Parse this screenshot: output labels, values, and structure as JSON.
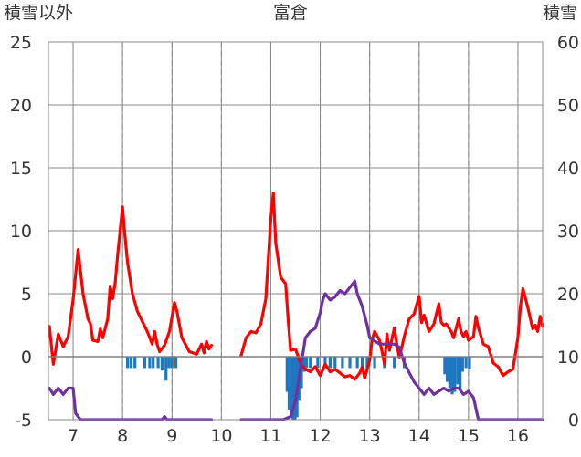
{
  "chart_data": {
    "type": "line",
    "title": "富倉",
    "left_axis_label": "積雪以外",
    "right_axis_label": "積雪",
    "x_ticks": [
      "7",
      "8",
      "9",
      "10",
      "11",
      "12",
      "13",
      "14",
      "15",
      "16"
    ],
    "x_range": [
      6.5,
      16.5
    ],
    "y_left": {
      "min": -5,
      "max": 25,
      "ticks": [
        "-5",
        "0",
        "5",
        "10",
        "15",
        "20",
        "25"
      ]
    },
    "y_right": {
      "min": 0,
      "max": 60,
      "ticks": [
        "0",
        "10",
        "20",
        "30",
        "40",
        "50",
        "60"
      ]
    },
    "grid": {
      "vertical": "dashed",
      "horizontal": "solid"
    },
    "colors": {
      "temperature": "#ff0000",
      "snow_depth": "#7030a0",
      "precipitation": "#1f77c0",
      "grid": "#888888"
    },
    "series": [
      {
        "axis": "left",
        "color": "#ff0000",
        "segments": [
          [
            [
              6.52,
              2.4
            ],
            [
              6.6,
              -0.6
            ],
            [
              6.7,
              1.8
            ],
            [
              6.8,
              0.8
            ],
            [
              6.9,
              1.6
            ],
            [
              7.0,
              4.5
            ],
            [
              7.1,
              8.5
            ],
            [
              7.2,
              5.0
            ],
            [
              7.3,
              3.0
            ],
            [
              7.35,
              2.6
            ],
            [
              7.4,
              1.3
            ],
            [
              7.5,
              1.2
            ],
            [
              7.55,
              2.2
            ],
            [
              7.6,
              1.5
            ],
            [
              7.7,
              3.0
            ],
            [
              7.75,
              5.6
            ],
            [
              7.8,
              4.6
            ],
            [
              7.85,
              5.8
            ],
            [
              7.9,
              8.0
            ],
            [
              8.0,
              11.9
            ],
            [
              8.05,
              9.5
            ],
            [
              8.1,
              7.5
            ],
            [
              8.2,
              5.0
            ],
            [
              8.3,
              3.6
            ],
            [
              8.4,
              2.8
            ],
            [
              8.5,
              2.0
            ],
            [
              8.6,
              1.0
            ],
            [
              8.65,
              2.0
            ],
            [
              8.7,
              1.0
            ],
            [
              8.75,
              0.4
            ],
            [
              8.85,
              0.9
            ],
            [
              8.95,
              2.0
            ],
            [
              9.05,
              4.3
            ],
            [
              9.1,
              3.6
            ],
            [
              9.2,
              1.5
            ],
            [
              9.35,
              0.4
            ],
            [
              9.5,
              0.2
            ],
            [
              9.6,
              1.0
            ],
            [
              9.65,
              0.3
            ],
            [
              9.7,
              1.2
            ],
            [
              9.75,
              0.6
            ],
            [
              9.8,
              0.9
            ]
          ],
          [
            [
              10.4,
              0.1
            ],
            [
              10.5,
              1.5
            ],
            [
              10.6,
              2.0
            ],
            [
              10.7,
              1.9
            ],
            [
              10.8,
              2.6
            ],
            [
              10.9,
              4.6
            ],
            [
              11.0,
              11.0
            ],
            [
              11.05,
              13.0
            ],
            [
              11.1,
              9.0
            ],
            [
              11.2,
              6.3
            ],
            [
              11.3,
              5.8
            ],
            [
              11.35,
              3.0
            ],
            [
              11.4,
              0.5
            ],
            [
              11.5,
              0.6
            ],
            [
              11.6,
              -0.5
            ],
            [
              11.7,
              -1.0
            ],
            [
              11.8,
              -1.2
            ],
            [
              11.9,
              -0.8
            ],
            [
              12.0,
              -1.5
            ],
            [
              12.1,
              -0.6
            ],
            [
              12.2,
              -1.2
            ],
            [
              12.3,
              -1.0
            ],
            [
              12.4,
              -1.3
            ],
            [
              12.5,
              -1.6
            ],
            [
              12.6,
              -1.5
            ],
            [
              12.7,
              -1.8
            ],
            [
              12.8,
              -1.3
            ],
            [
              12.85,
              -0.8
            ],
            [
              12.9,
              -1.7
            ],
            [
              13.0,
              -0.3
            ],
            [
              13.05,
              1.4
            ],
            [
              13.1,
              2.0
            ],
            [
              13.2,
              1.3
            ],
            [
              13.25,
              0.4
            ],
            [
              13.3,
              -0.6
            ],
            [
              13.35,
              1.8
            ],
            [
              13.4,
              0.5
            ],
            [
              13.5,
              2.3
            ],
            [
              13.55,
              1.0
            ],
            [
              13.6,
              -0.1
            ],
            [
              13.7,
              1.6
            ],
            [
              13.8,
              3.0
            ],
            [
              13.9,
              3.4
            ],
            [
              14.0,
              4.8
            ],
            [
              14.05,
              2.7
            ],
            [
              14.1,
              3.3
            ],
            [
              14.2,
              2.0
            ],
            [
              14.3,
              2.6
            ],
            [
              14.4,
              4.2
            ],
            [
              14.45,
              2.7
            ],
            [
              14.5,
              2.5
            ],
            [
              14.55,
              2.6
            ],
            [
              14.65,
              2.0
            ],
            [
              14.7,
              1.5
            ],
            [
              14.8,
              3.0
            ],
            [
              14.85,
              2.0
            ],
            [
              14.9,
              1.6
            ],
            [
              14.95,
              2.0
            ],
            [
              15.0,
              1.3
            ],
            [
              15.1,
              1.6
            ],
            [
              15.15,
              3.2
            ],
            [
              15.2,
              2.3
            ],
            [
              15.3,
              1.0
            ],
            [
              15.4,
              0.8
            ],
            [
              15.5,
              -0.5
            ],
            [
              15.6,
              -0.8
            ],
            [
              15.7,
              -1.5
            ],
            [
              15.8,
              -1.2
            ],
            [
              15.9,
              -1.0
            ],
            [
              16.0,
              1.5
            ],
            [
              16.05,
              4.0
            ],
            [
              16.1,
              5.4
            ],
            [
              16.2,
              3.9
            ],
            [
              16.3,
              2.2
            ],
            [
              16.35,
              2.5
            ],
            [
              16.4,
              2.0
            ],
            [
              16.45,
              3.2
            ],
            [
              16.5,
              2.4
            ]
          ]
        ]
      },
      {
        "axis": "right",
        "color": "#7030a0",
        "segments": [
          [
            [
              6.52,
              5.0
            ],
            [
              6.6,
              4.0
            ],
            [
              6.7,
              5.0
            ],
            [
              6.8,
              4.0
            ],
            [
              6.9,
              5.0
            ],
            [
              7.0,
              5.0
            ],
            [
              7.05,
              1.0
            ],
            [
              7.1,
              0.5
            ],
            [
              7.15,
              0.0
            ],
            [
              7.3,
              0.0
            ],
            [
              8.5,
              0.0
            ],
            [
              8.8,
              0.0
            ],
            [
              8.85,
              0.5
            ],
            [
              8.9,
              0.0
            ],
            [
              9.8,
              0.0
            ]
          ],
          [
            [
              10.4,
              0.0
            ],
            [
              11.25,
              0.0
            ],
            [
              11.4,
              0.5
            ],
            [
              11.5,
              3.0
            ],
            [
              11.6,
              8.0
            ],
            [
              11.7,
              13.0
            ],
            [
              11.8,
              14.0
            ],
            [
              11.9,
              14.5
            ],
            [
              12.0,
              17.0
            ],
            [
              12.05,
              19.0
            ],
            [
              12.1,
              20.0
            ],
            [
              12.2,
              19.0
            ],
            [
              12.3,
              19.5
            ],
            [
              12.4,
              20.5
            ],
            [
              12.5,
              20.0
            ],
            [
              12.6,
              21.0
            ],
            [
              12.7,
              22.0
            ],
            [
              12.75,
              20.0
            ],
            [
              12.85,
              18.0
            ],
            [
              12.95,
              15.0
            ],
            [
              13.0,
              13.0
            ],
            [
              13.2,
              12.0
            ],
            [
              13.5,
              12.0
            ],
            [
              13.6,
              11.5
            ],
            [
              13.7,
              9.0
            ],
            [
              13.8,
              7.5
            ],
            [
              13.9,
              6.0
            ],
            [
              14.0,
              5.0
            ],
            [
              14.1,
              4.0
            ],
            [
              14.2,
              5.0
            ],
            [
              14.3,
              4.0
            ],
            [
              14.4,
              4.5
            ],
            [
              14.5,
              5.0
            ],
            [
              14.6,
              4.5
            ],
            [
              14.7,
              5.0
            ],
            [
              14.8,
              5.0
            ],
            [
              14.9,
              4.0
            ],
            [
              15.0,
              4.5
            ],
            [
              15.1,
              3.5
            ],
            [
              15.2,
              0.0
            ],
            [
              16.5,
              0.0
            ]
          ]
        ]
      }
    ],
    "bars": {
      "axis": "left",
      "color": "#1f77c0",
      "items": [
        [
          8.1,
          0.9
        ],
        [
          8.17,
          0.9
        ],
        [
          8.25,
          0.9
        ],
        [
          8.45,
          0.9
        ],
        [
          8.55,
          0.9
        ],
        [
          8.62,
          0.9
        ],
        [
          8.72,
          0.9
        ],
        [
          8.8,
          1.1
        ],
        [
          8.88,
          1.9
        ],
        [
          8.94,
          0.9
        ],
        [
          9.0,
          0.9
        ],
        [
          9.08,
          0.9
        ],
        [
          11.33,
          2.8
        ],
        [
          11.37,
          4.2
        ],
        [
          11.41,
          4.8
        ],
        [
          11.45,
          5.0
        ],
        [
          11.49,
          5.0
        ],
        [
          11.53,
          4.8
        ],
        [
          11.57,
          3.5
        ],
        [
          11.62,
          2.5
        ],
        [
          11.68,
          1.2
        ],
        [
          11.72,
          0.9
        ],
        [
          11.8,
          0.9
        ],
        [
          11.95,
          0.9
        ],
        [
          12.1,
          0.9
        ],
        [
          12.2,
          0.9
        ],
        [
          12.3,
          0.9
        ],
        [
          12.45,
          0.9
        ],
        [
          12.6,
          0.9
        ],
        [
          12.75,
          0.9
        ],
        [
          12.85,
          0.9
        ],
        [
          12.95,
          0.9
        ],
        [
          13.1,
          0.9
        ],
        [
          13.3,
          0.9
        ],
        [
          13.5,
          0.9
        ],
        [
          13.7,
          0.9
        ],
        [
          14.52,
          1.4
        ],
        [
          14.57,
          2.0
        ],
        [
          14.62,
          2.5
        ],
        [
          14.67,
          3.0
        ],
        [
          14.72,
          2.8
        ],
        [
          14.78,
          2.2
        ],
        [
          14.83,
          2.6
        ],
        [
          14.88,
          1.2
        ],
        [
          14.95,
          0.9
        ],
        [
          15.02,
          1.0
        ]
      ]
    }
  }
}
